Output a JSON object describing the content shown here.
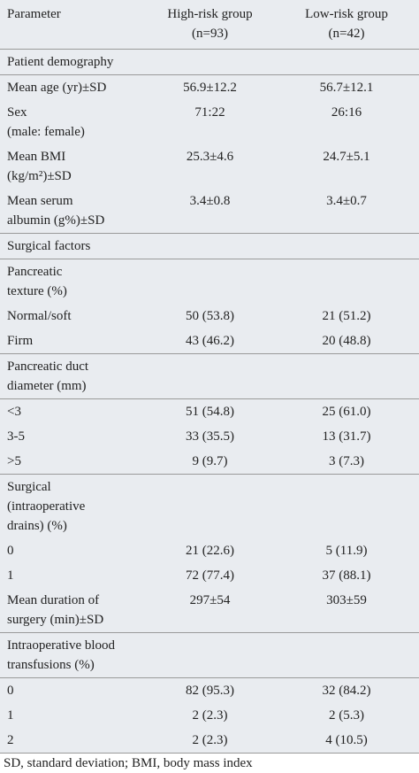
{
  "table": {
    "header": [
      [
        "Parameter"
      ],
      [
        "High-risk group",
        "(n=93)"
      ],
      [
        "Low-risk group",
        "(n=42)"
      ]
    ],
    "groups": [
      [
        [
          [
            "Patient demography"
          ],
          [],
          []
        ]
      ],
      [
        [
          [
            "Mean age (yr)±SD"
          ],
          [
            "56.9±12.2"
          ],
          [
            "56.7±12.1"
          ]
        ],
        [
          [
            "Sex",
            "(male: female)"
          ],
          [
            "71:22"
          ],
          [
            "26:16"
          ]
        ],
        [
          [
            "Mean BMI",
            "(kg/m²)±SD"
          ],
          [
            "25.3±4.6"
          ],
          [
            "24.7±5.1"
          ]
        ],
        [
          [
            "Mean serum",
            "albumin (g%)±SD"
          ],
          [
            "3.4±0.8"
          ],
          [
            "3.4±0.7"
          ]
        ]
      ],
      [
        [
          [
            "Surgical factors"
          ],
          [],
          []
        ]
      ],
      [
        [
          [
            "Pancreatic",
            "texture (%)"
          ],
          [],
          []
        ],
        [
          [
            "Normal/soft"
          ],
          [
            "50 (53.8)"
          ],
          [
            "21 (51.2)"
          ]
        ],
        [
          [
            "Firm"
          ],
          [
            "43 (46.2)"
          ],
          [
            "20 (48.8)"
          ]
        ]
      ],
      [
        [
          [
            "Pancreatic duct",
            "diameter (mm)"
          ],
          [],
          []
        ]
      ],
      [
        [
          [
            "<3"
          ],
          [
            "51 (54.8)"
          ],
          [
            "25 (61.0)"
          ]
        ],
        [
          [
            "3-5"
          ],
          [
            "33 (35.5)"
          ],
          [
            "13 (31.7)"
          ]
        ],
        [
          [
            ">5"
          ],
          [
            "9 (9.7)"
          ],
          [
            "3 (7.3)"
          ]
        ]
      ],
      [
        [
          [
            "Surgical",
            "(intraoperative",
            "drains) (%)"
          ],
          [],
          []
        ],
        [
          [
            "0"
          ],
          [
            "21 (22.6)"
          ],
          [
            "5 (11.9)"
          ]
        ],
        [
          [
            "1"
          ],
          [
            "72 (77.4)"
          ],
          [
            "37 (88.1)"
          ]
        ],
        [
          [
            "Mean duration of",
            "surgery (min)±SD"
          ],
          [
            "297±54"
          ],
          [
            "303±59"
          ]
        ]
      ],
      [
        [
          [
            "Intraoperative blood",
            "transfusions (%)"
          ],
          [],
          []
        ]
      ],
      [
        [
          [
            "0"
          ],
          [
            "82 (95.3)"
          ],
          [
            "32 (84.2)"
          ]
        ],
        [
          [
            "1"
          ],
          [
            "2 (2.3)"
          ],
          [
            "2 (5.3)"
          ]
        ],
        [
          [
            "2"
          ],
          [
            "2 (2.3)"
          ],
          [
            "4 (10.5)"
          ]
        ]
      ]
    ]
  },
  "footnote": "SD, standard deviation; BMI, body mass index"
}
